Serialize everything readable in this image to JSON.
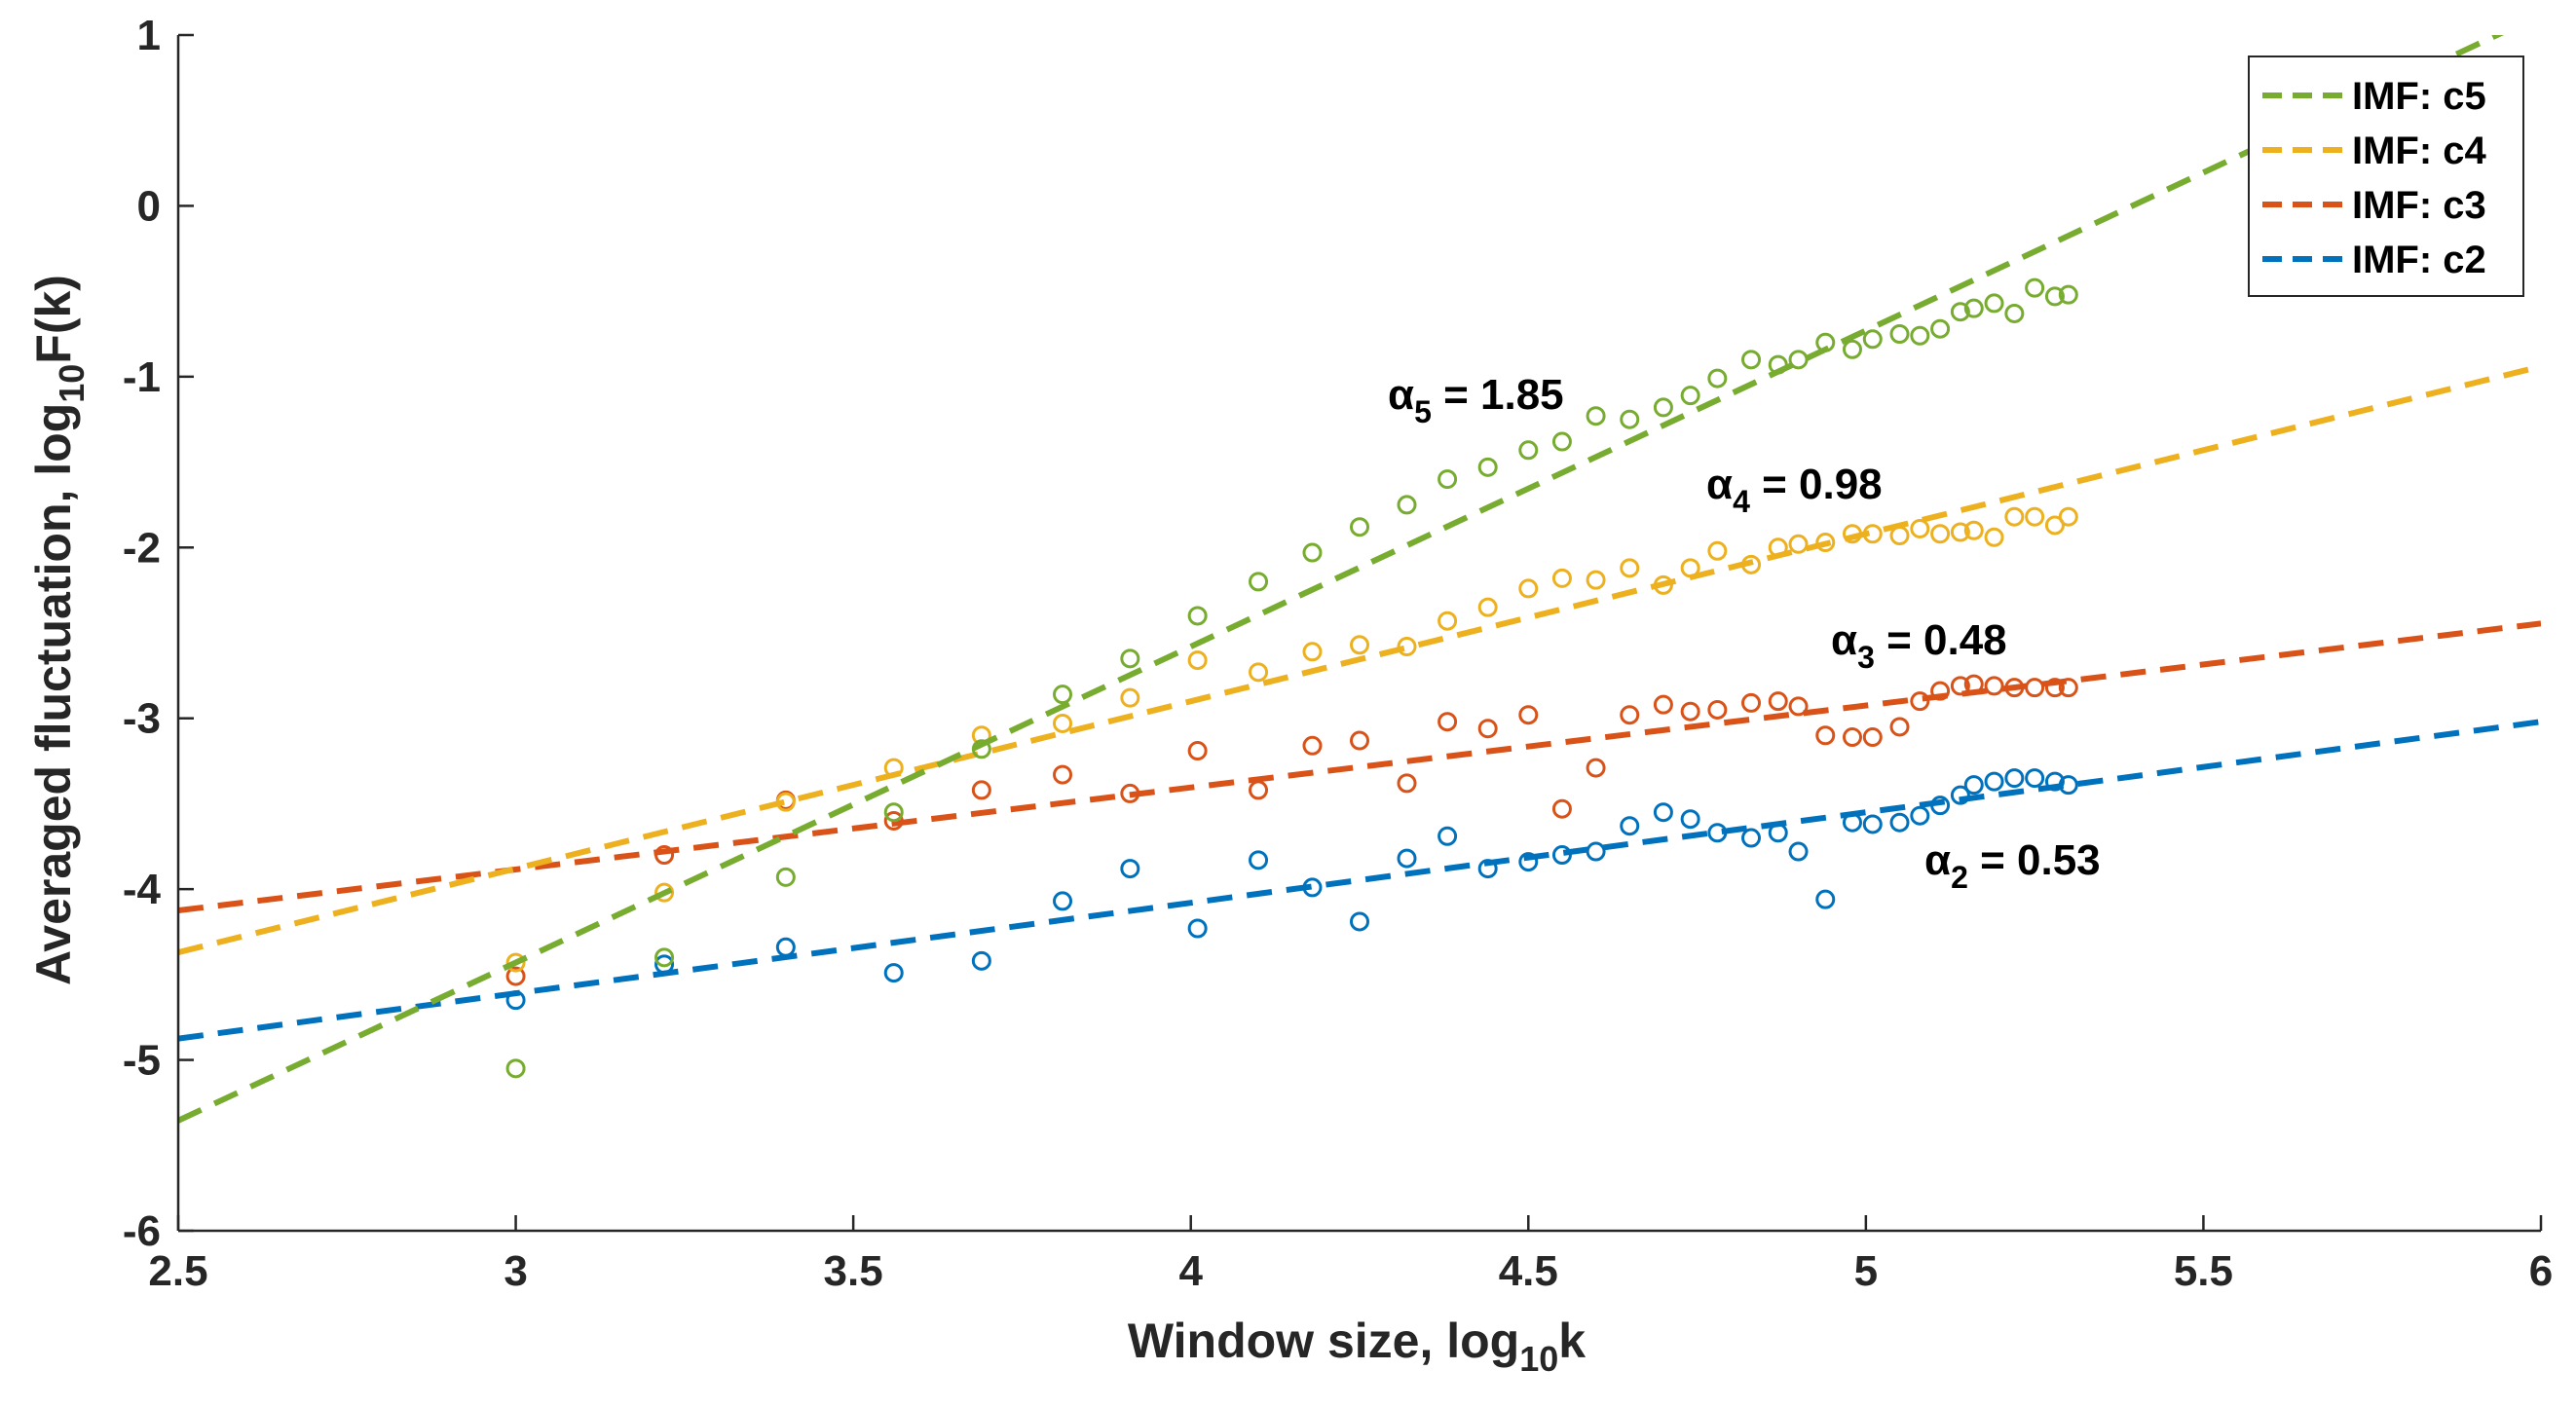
{
  "chart_data": {
    "type": "scatter",
    "title": "",
    "xlabel": "Window size, log",
    "xlabel_sub": "10",
    "xlabel_tail": "k",
    "ylabel": "Averaged fluctuation, log",
    "ylabel_sub": "10",
    "ylabel_tail": "F(k)",
    "xlim": [
      2.5,
      6
    ],
    "ylim": [
      -6,
      1
    ],
    "xticks": [
      2.5,
      3,
      3.5,
      4,
      4.5,
      5,
      5.5,
      6
    ],
    "xtick_labels": [
      "2.5",
      "3",
      "3.5",
      "4",
      "4.5",
      "5",
      "5.5",
      "6"
    ],
    "yticks": [
      -6,
      -5,
      -4,
      -3,
      -2,
      -1,
      0,
      1
    ],
    "ytick_labels": [
      "-6",
      "-5",
      "-4",
      "-3",
      "-2",
      "-1",
      "0",
      "1"
    ],
    "grid": false,
    "legend_position": "top-right",
    "x": [
      3.0,
      3.22,
      3.4,
      3.56,
      3.69,
      3.81,
      3.91,
      4.01,
      4.1,
      4.18,
      4.25,
      4.32,
      4.38,
      4.44,
      4.5,
      4.55,
      4.6,
      4.65,
      4.7,
      4.74,
      4.78,
      4.83,
      4.87,
      4.9,
      4.94,
      4.98,
      5.01,
      5.05,
      5.08,
      5.11,
      5.14,
      5.16,
      5.19,
      5.22,
      5.25,
      5.28,
      5.3
    ],
    "series": [
      {
        "name": "IMF: c5",
        "color": "#77AC30",
        "alpha_label": "α",
        "alpha_sub": "5",
        "alpha_value": " = 1.85",
        "fit": {
          "slope": 1.85,
          "intercept": -9.98
        },
        "values": [
          -5.05,
          -4.4,
          -3.93,
          -3.55,
          -3.18,
          -2.86,
          -2.65,
          -2.4,
          -2.2,
          -2.03,
          -1.88,
          -1.75,
          -1.6,
          -1.53,
          -1.43,
          -1.38,
          -1.23,
          -1.25,
          -1.18,
          -1.11,
          -1.01,
          -0.9,
          -0.93,
          -0.9,
          -0.8,
          -0.84,
          -0.78,
          -0.75,
          -0.76,
          -0.72,
          -0.62,
          -0.6,
          -0.57,
          -0.63,
          -0.48,
          -0.53,
          -0.52
        ]
      },
      {
        "name": "IMF: c4",
        "color": "#EDB120",
        "alpha_label": "α",
        "alpha_sub": "4",
        "alpha_value": " = 0.98",
        "fit": {
          "slope": 0.98,
          "intercept": -6.82
        },
        "values": [
          -4.43,
          -4.02,
          -3.49,
          -3.29,
          -3.1,
          -3.03,
          -2.88,
          -2.66,
          -2.73,
          -2.61,
          -2.57,
          -2.58,
          -2.43,
          -2.35,
          -2.24,
          -2.18,
          -2.19,
          -2.12,
          -2.22,
          -2.12,
          -2.02,
          -2.1,
          -2.0,
          -1.98,
          -1.97,
          -1.92,
          -1.92,
          -1.93,
          -1.89,
          -1.92,
          -1.91,
          -1.9,
          -1.94,
          -1.82,
          -1.82,
          -1.87,
          -1.82
        ]
      },
      {
        "name": "IMF: c3",
        "color": "#D95319",
        "alpha_label": "α",
        "alpha_sub": "3",
        "alpha_value": " = 0.48",
        "fit": {
          "slope": 0.48,
          "intercept": -5.325
        },
        "values": [
          -4.51,
          -3.8,
          -3.48,
          -3.6,
          -3.42,
          -3.33,
          -3.44,
          -3.19,
          -3.42,
          -3.16,
          -3.13,
          -3.38,
          -3.02,
          -3.06,
          -2.98,
          -3.53,
          -3.29,
          -2.98,
          -2.92,
          -2.96,
          -2.95,
          -2.91,
          -2.9,
          -2.93,
          -3.1,
          -3.11,
          -3.11,
          -3.05,
          -2.9,
          -2.84,
          -2.81,
          -2.8,
          -2.81,
          -2.82,
          -2.82,
          -2.82,
          -2.82
        ]
      },
      {
        "name": "IMF: c2",
        "color": "#0072BD",
        "alpha_label": "α",
        "alpha_sub": "2",
        "alpha_value": " = 0.53",
        "fit": {
          "slope": 0.53,
          "intercept": -6.2
        },
        "values": [
          -4.65,
          -4.44,
          -4.34,
          -4.49,
          -4.42,
          -4.07,
          -3.88,
          -4.23,
          -3.83,
          -3.99,
          -4.19,
          -3.82,
          -3.69,
          -3.88,
          -3.84,
          -3.8,
          -3.78,
          -3.63,
          -3.55,
          -3.59,
          -3.67,
          -3.7,
          -3.67,
          -3.78,
          -4.06,
          -3.61,
          -3.62,
          -3.61,
          -3.57,
          -3.51,
          -3.45,
          -3.39,
          -3.37,
          -3.35,
          -3.35,
          -3.37,
          -3.39
        ]
      }
    ]
  }
}
